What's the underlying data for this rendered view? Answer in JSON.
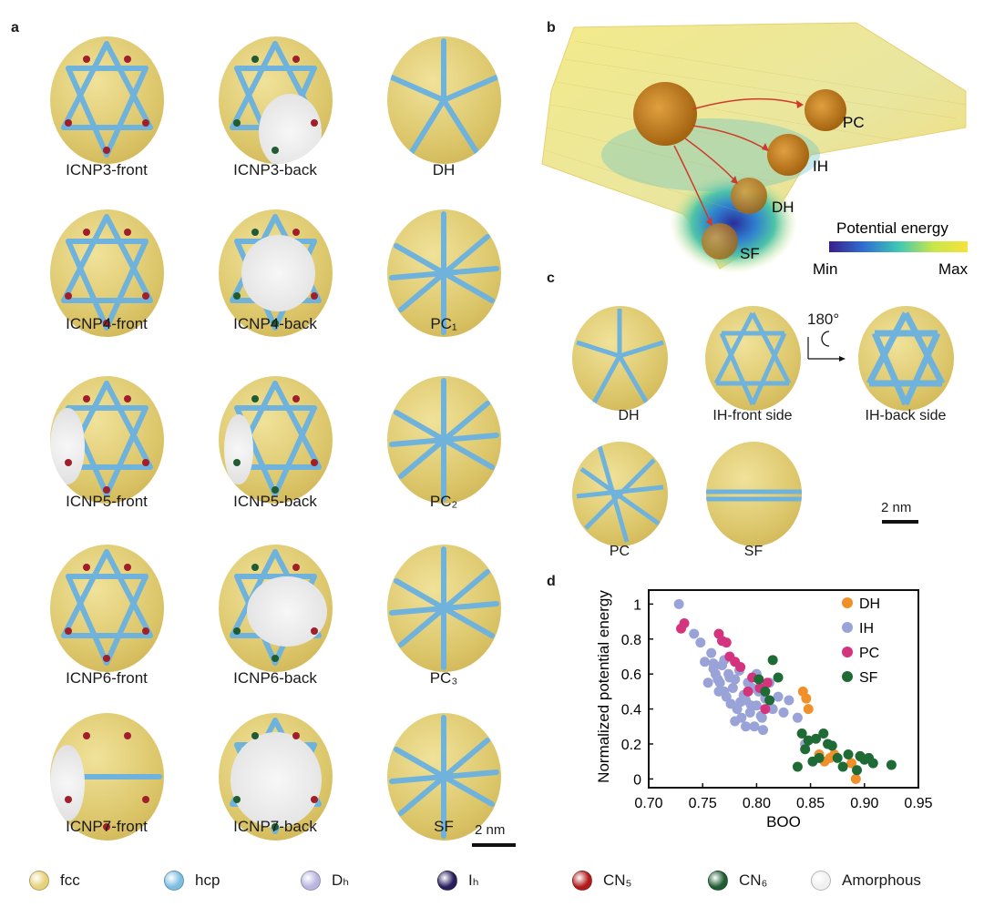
{
  "panels": {
    "a": "a",
    "b": "b",
    "c": "c",
    "d": "d"
  },
  "panel_a": {
    "captions": [
      "ICNP3-front",
      "ICNP3-back",
      "DH",
      "ICNP4-front",
      "ICNP4-back",
      "PC₁",
      "ICNP5-front",
      "ICNP5-back",
      "PC₂",
      "ICNP6-front",
      "ICNP6-back",
      "PC₃",
      "ICNP7-front",
      "ICNP7-back",
      "SF"
    ],
    "scalebar": "2 nm"
  },
  "panel_b": {
    "labels": {
      "pc": "PC",
      "ih": "IH",
      "dh": "DH",
      "sf": "SF"
    },
    "colorbar": {
      "title": "Potential energy",
      "min": "Min",
      "max": "Max"
    }
  },
  "panel_c": {
    "captions": {
      "dh": "DH",
      "ih_front": "IH-front side",
      "ih_back": "IH-back side",
      "pc": "PC",
      "sf": "SF"
    },
    "rotation": "180°",
    "scalebar": "2 nm"
  },
  "legend": [
    {
      "label": "fcc",
      "color": "#e6d27a"
    },
    {
      "label": "hcp",
      "color": "#7cbde0"
    },
    {
      "label": "Dₕ",
      "color": "#b8b6e0"
    },
    {
      "label": "Iₕ",
      "color": "#2a1f5c"
    },
    {
      "label": "CN₅",
      "color": "#b31b1b"
    },
    {
      "label": "CN₆",
      "color": "#1f5c32"
    },
    {
      "label": "Amorphous",
      "color": "#f0f0f0"
    }
  ],
  "chart_data": {
    "type": "scatter",
    "xlabel": "BOO",
    "ylabel": "Normalized potential energy",
    "xlim": [
      0.7,
      0.95
    ],
    "ylim": [
      -0.05,
      1.08
    ],
    "xticks": [
      "0.70",
      "0.75",
      "0.80",
      "0.85",
      "0.90",
      "0.95"
    ],
    "yticks": [
      "0",
      "0.2",
      "0.4",
      "0.6",
      "0.8",
      "1"
    ],
    "legend_position": "top-right",
    "series": [
      {
        "name": "DH",
        "color": "#f0902a",
        "x": [
          0.843,
          0.846,
          0.848,
          0.845,
          0.858,
          0.868,
          0.872,
          0.888,
          0.892,
          0.896,
          0.863
        ],
        "y": [
          0.5,
          0.46,
          0.4,
          0.2,
          0.14,
          0.12,
          0.14,
          0.09,
          0.0,
          0.13,
          0.1
        ]
      },
      {
        "name": "IH",
        "color": "#9aa3d8",
        "x": [
          0.728,
          0.742,
          0.748,
          0.752,
          0.755,
          0.758,
          0.76,
          0.762,
          0.764,
          0.766,
          0.768,
          0.77,
          0.772,
          0.774,
          0.776,
          0.778,
          0.78,
          0.782,
          0.784,
          0.786,
          0.788,
          0.79,
          0.792,
          0.794,
          0.796,
          0.798,
          0.8,
          0.802,
          0.804,
          0.806,
          0.808,
          0.812,
          0.815,
          0.82,
          0.825,
          0.83,
          0.838,
          0.845,
          0.77,
          0.775,
          0.78,
          0.785,
          0.79,
          0.795,
          0.76,
          0.765,
          0.8,
          0.805
        ],
        "y": [
          1.0,
          0.83,
          0.78,
          0.67,
          0.55,
          0.72,
          0.63,
          0.6,
          0.57,
          0.55,
          0.65,
          0.5,
          0.47,
          0.6,
          0.43,
          0.52,
          0.57,
          0.4,
          0.62,
          0.35,
          0.48,
          0.45,
          0.55,
          0.38,
          0.52,
          0.3,
          0.42,
          0.5,
          0.36,
          0.28,
          0.46,
          0.55,
          0.4,
          0.47,
          0.38,
          0.45,
          0.35,
          0.2,
          0.68,
          0.58,
          0.33,
          0.44,
          0.3,
          0.42,
          0.66,
          0.5,
          0.6,
          0.35
        ]
      },
      {
        "name": "PC",
        "color": "#d4347e",
        "x": [
          0.73,
          0.733,
          0.765,
          0.768,
          0.772,
          0.775,
          0.78,
          0.785,
          0.792,
          0.796,
          0.803,
          0.808,
          0.81
        ],
        "y": [
          0.86,
          0.89,
          0.83,
          0.79,
          0.78,
          0.7,
          0.67,
          0.64,
          0.5,
          0.58,
          0.52,
          0.4,
          0.55
        ]
      },
      {
        "name": "SF",
        "color": "#1f6b36",
        "x": [
          0.802,
          0.808,
          0.812,
          0.815,
          0.82,
          0.838,
          0.842,
          0.845,
          0.848,
          0.852,
          0.855,
          0.858,
          0.862,
          0.866,
          0.87,
          0.875,
          0.88,
          0.885,
          0.893,
          0.896,
          0.9,
          0.904,
          0.908,
          0.925
        ],
        "y": [
          0.57,
          0.5,
          0.45,
          0.68,
          0.58,
          0.07,
          0.26,
          0.17,
          0.22,
          0.1,
          0.23,
          0.12,
          0.26,
          0.2,
          0.19,
          0.12,
          0.07,
          0.14,
          0.05,
          0.13,
          0.11,
          0.12,
          0.09,
          0.08
        ]
      }
    ]
  }
}
